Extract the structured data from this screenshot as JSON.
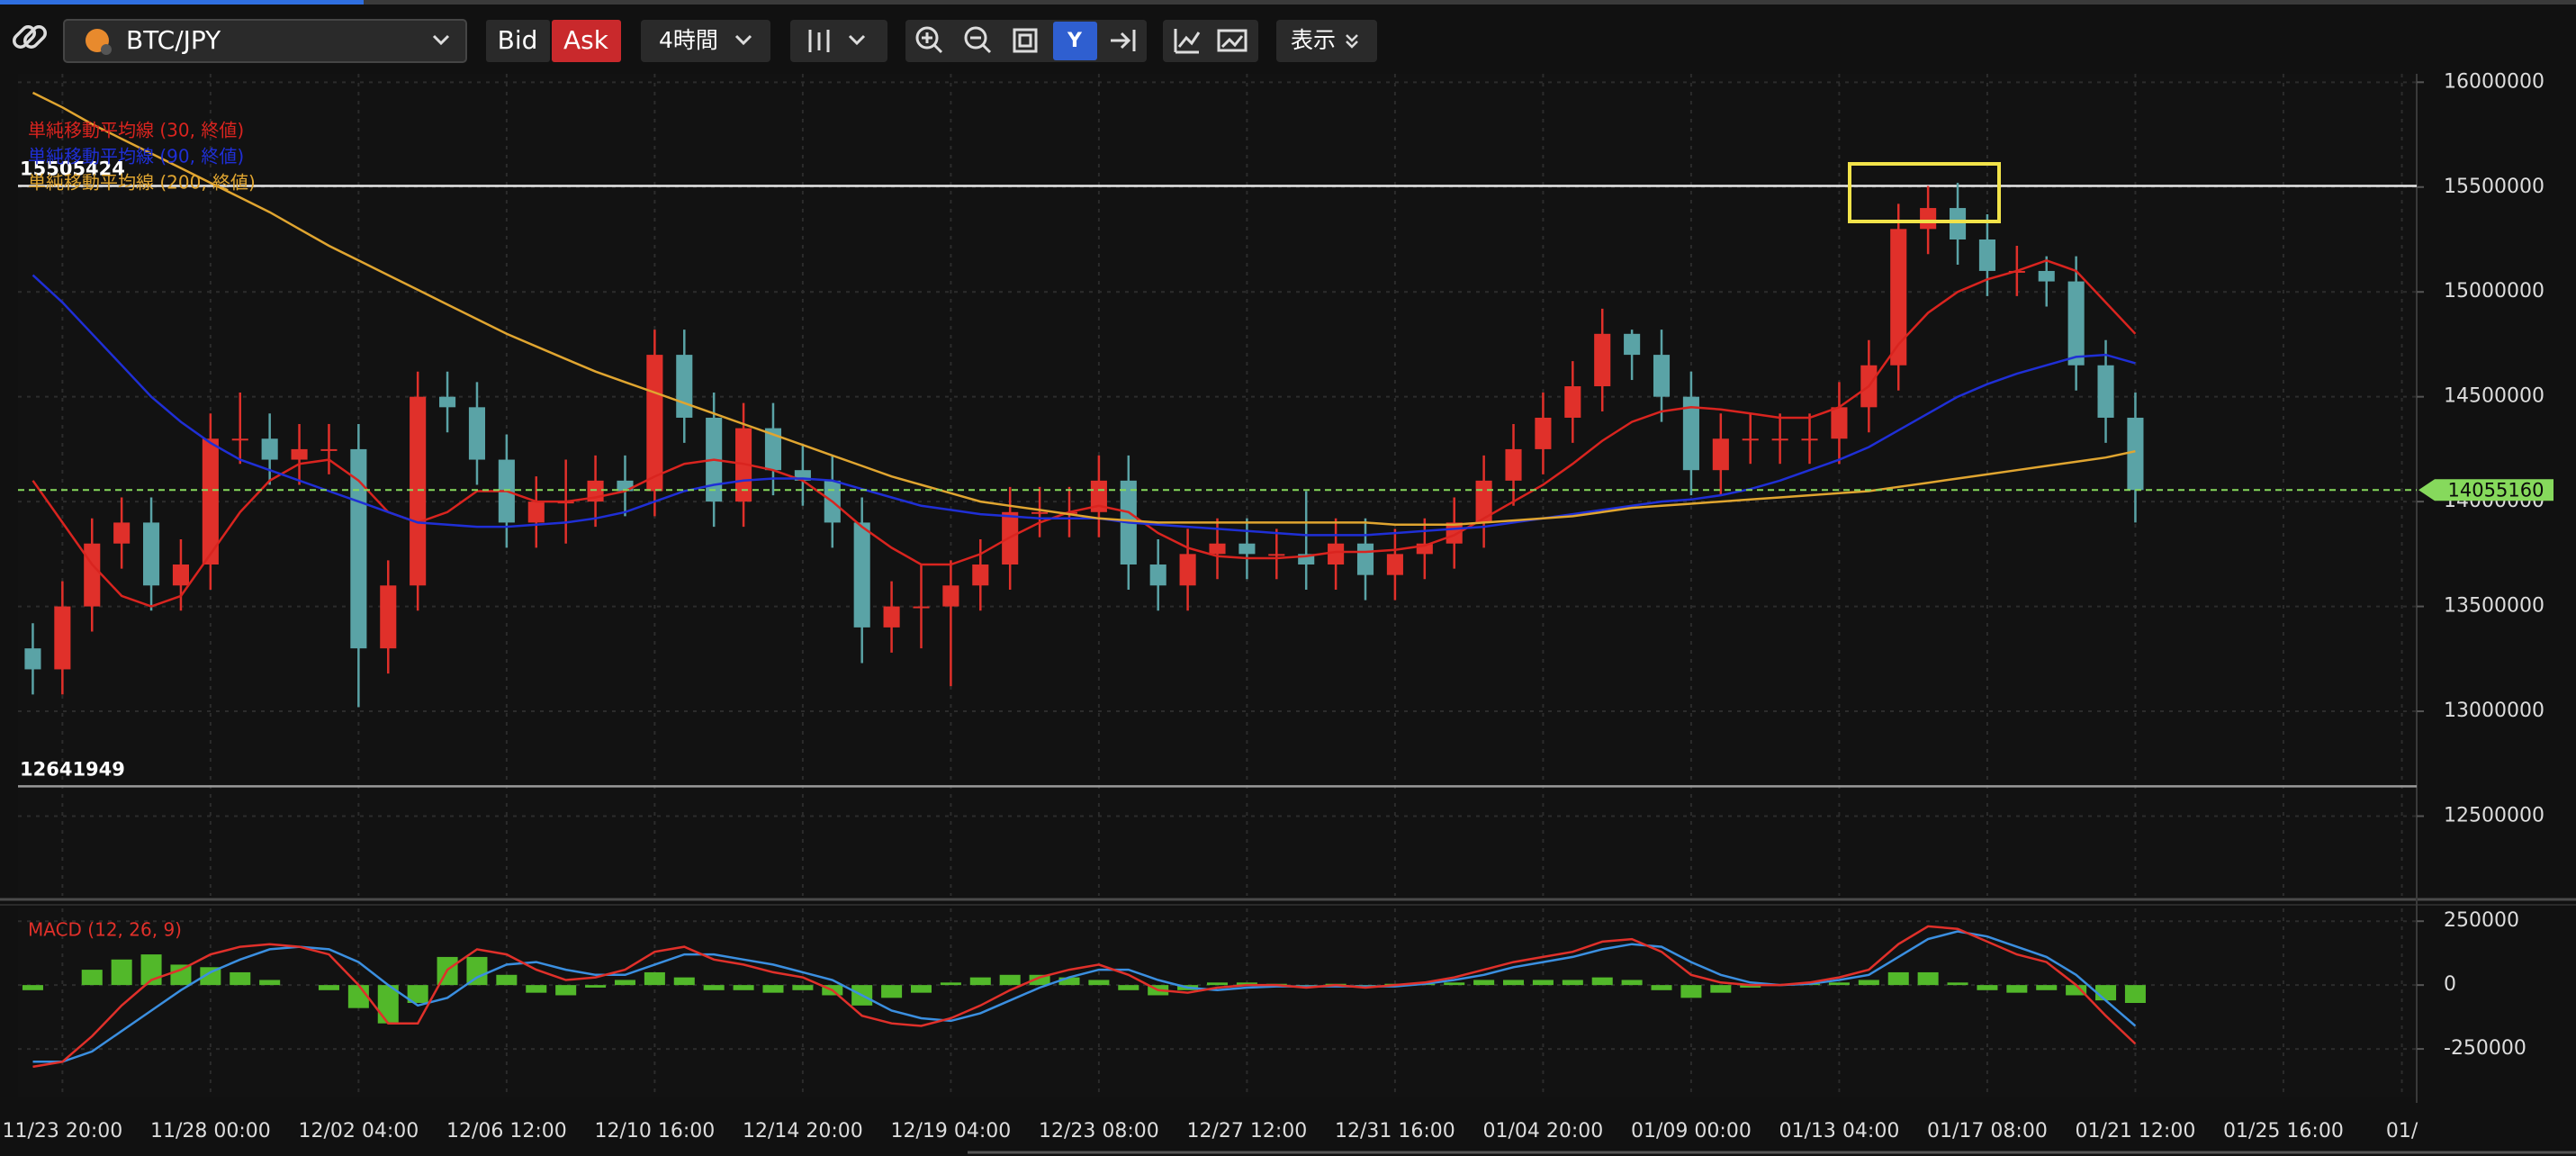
{
  "toolbar": {
    "symbol": "BTC/JPY",
    "bid": "Bid",
    "ask": "Ask",
    "interval": "4時間",
    "view": "表示"
  },
  "chart_data": [
    {
      "type": "candlestick",
      "categories": [
        null,
        "11/23 20:00",
        null,
        null,
        null,
        null,
        "11/28 00:00",
        null,
        null,
        null,
        null,
        "12/02 04:00",
        null,
        null,
        null,
        null,
        "12/06 12:00",
        null,
        null,
        null,
        null,
        "12/10 16:00",
        null,
        null,
        null,
        null,
        "12/14 20:00",
        null,
        null,
        null,
        null,
        "12/19 04:00",
        null,
        null,
        null,
        null,
        "12/23 08:00",
        null,
        null,
        null,
        null,
        "12/27 12:00",
        null,
        null,
        null,
        null,
        "12/31 16:00",
        null,
        null,
        null,
        null,
        "01/04 20:00",
        null,
        null,
        null,
        null,
        "01/09 00:00",
        null,
        null,
        null,
        null,
        "01/13 04:00",
        null,
        null,
        null,
        null,
        "01/17 08:00",
        null,
        null,
        null,
        null,
        "01/21 12:00",
        null,
        null,
        null,
        null,
        "01/25 16:00",
        null,
        null,
        null,
        "01/"
      ],
      "open": [
        13300000,
        13200000,
        13500000,
        13800000,
        13900000,
        13600000,
        13700000,
        14300000,
        14300000,
        14200000,
        14250000,
        14250000,
        13300000,
        13600000,
        14500000,
        14450000,
        14200000,
        13900000,
        14000000,
        14000000,
        14100000,
        14050000,
        14700000,
        14400000,
        14000000,
        14350000,
        14150000,
        14100000,
        13900000,
        13400000,
        13500000,
        13500000,
        13600000,
        13700000,
        13950000,
        13950000,
        13950000,
        14100000,
        13700000,
        13600000,
        13750000,
        13800000,
        13750000,
        13750000,
        13700000,
        13800000,
        13650000,
        13750000,
        13800000,
        13900000,
        14100000,
        14250000,
        14400000,
        14550000,
        14800000,
        14700000,
        14500000,
        14150000,
        14300000,
        14300000,
        14300000,
        14300000,
        14450000,
        14650000,
        15300000,
        15400000,
        15250000,
        15100000,
        15100000,
        15050000,
        14650000,
        14400000,
        null,
        null,
        null,
        null,
        null,
        null,
        null,
        null,
        null
      ],
      "high": [
        13420000,
        13620000,
        13920000,
        14020000,
        14020000,
        13820000,
        14420000,
        14520000,
        14420000,
        14370000,
        14370000,
        14370000,
        13720000,
        14620000,
        14620000,
        14570000,
        14320000,
        14120000,
        14200000,
        14220000,
        14220000,
        14820000,
        14820000,
        14520000,
        14470000,
        14470000,
        14270000,
        14220000,
        14020000,
        13620000,
        13700000,
        13720000,
        13820000,
        14070000,
        14070000,
        14070000,
        14220000,
        14220000,
        13820000,
        13870000,
        13920000,
        13920000,
        13870000,
        14050000,
        13920000,
        13920000,
        13870000,
        13920000,
        14020000,
        14220000,
        14370000,
        14520000,
        14670000,
        14920000,
        14820000,
        14820000,
        14620000,
        14420000,
        14420000,
        14420000,
        14420000,
        14570000,
        14770000,
        15420000,
        15505424,
        15520000,
        15370000,
        15220000,
        15170000,
        15170000,
        14770000,
        14520000,
        null,
        null,
        null,
        null,
        null,
        null,
        null,
        null,
        null
      ],
      "low": [
        13080000,
        13080000,
        13380000,
        13680000,
        13480000,
        13480000,
        13580000,
        14180000,
        14080000,
        14080000,
        14130000,
        13020000,
        13180000,
        13480000,
        14330000,
        14080000,
        13780000,
        13780000,
        13800000,
        13880000,
        13930000,
        13930000,
        14280000,
        13880000,
        13880000,
        14030000,
        13980000,
        13780000,
        13230000,
        13280000,
        13300000,
        13120000,
        13480000,
        13580000,
        13830000,
        13830000,
        13830000,
        13580000,
        13480000,
        13480000,
        13630000,
        13630000,
        13630000,
        13580000,
        13580000,
        13530000,
        13530000,
        13630000,
        13680000,
        13780000,
        13980000,
        14130000,
        14280000,
        14430000,
        14580000,
        14380000,
        14030000,
        14030000,
        14180000,
        14180000,
        14180000,
        14180000,
        14330000,
        14530000,
        15180000,
        15130000,
        14980000,
        14980000,
        14930000,
        14530000,
        14280000,
        13900000,
        null,
        null,
        null,
        null,
        null,
        null,
        null,
        null,
        null
      ],
      "close": [
        13200000,
        13500000,
        13800000,
        13900000,
        13600000,
        13700000,
        14300000,
        14300000,
        14200000,
        14250000,
        14250000,
        13300000,
        13600000,
        14500000,
        14450000,
        14200000,
        13900000,
        14000000,
        14000000,
        14100000,
        14050000,
        14700000,
        14400000,
        14000000,
        14350000,
        14150000,
        14100000,
        13900000,
        13400000,
        13500000,
        13500000,
        13600000,
        13700000,
        13950000,
        13950000,
        13950000,
        14100000,
        13700000,
        13600000,
        13750000,
        13800000,
        13750000,
        13750000,
        13700000,
        13800000,
        13650000,
        13750000,
        13800000,
        13900000,
        14100000,
        14250000,
        14400000,
        14550000,
        14800000,
        14700000,
        14500000,
        14150000,
        14300000,
        14300000,
        14300000,
        14300000,
        14450000,
        14650000,
        15300000,
        15400000,
        15250000,
        15100000,
        15100000,
        15050000,
        14650000,
        14400000,
        14055160,
        null,
        null,
        null,
        null,
        null,
        null,
        null,
        null,
        null
      ],
      "up_color": "#e0302a",
      "down_color": "#5aa3a6",
      "series": [
        {
          "name": "単純移動平均線 (30, 終値)",
          "color": "#d9241f",
          "values": [
            14100000,
            13900000,
            13700000,
            13550000,
            13500000,
            13550000,
            13750000,
            13950000,
            14100000,
            14180000,
            14200000,
            14100000,
            13950000,
            13900000,
            13950000,
            14050000,
            14050000,
            14000000,
            14000000,
            14020000,
            14050000,
            14120000,
            14180000,
            14200000,
            14180000,
            14150000,
            14100000,
            14000000,
            13880000,
            13780000,
            13700000,
            13700000,
            13750000,
            13830000,
            13900000,
            13950000,
            13980000,
            13950000,
            13850000,
            13780000,
            13740000,
            13730000,
            13730000,
            13740000,
            13760000,
            13760000,
            13770000,
            13790000,
            13840000,
            13920000,
            14000000,
            14080000,
            14180000,
            14290000,
            14380000,
            14430000,
            14450000,
            14440000,
            14420000,
            14400000,
            14400000,
            14450000,
            14550000,
            14750000,
            14900000,
            15000000,
            15060000,
            15100000,
            15150000,
            15100000,
            14950000,
            14800000,
            null,
            null,
            null,
            null,
            null,
            null,
            null,
            null,
            null
          ]
        },
        {
          "name": "単純移動平均線 (90, 終値)",
          "color": "#1f2fd6",
          "values": [
            15080000,
            14950000,
            14800000,
            14650000,
            14500000,
            14380000,
            14280000,
            14200000,
            14150000,
            14100000,
            14050000,
            14000000,
            13950000,
            13900000,
            13890000,
            13880000,
            13880000,
            13890000,
            13900000,
            13920000,
            13950000,
            14000000,
            14050000,
            14080000,
            14100000,
            14110000,
            14110000,
            14100000,
            14060000,
            14020000,
            13980000,
            13960000,
            13940000,
            13930000,
            13920000,
            13920000,
            13920000,
            13900000,
            13890000,
            13880000,
            13870000,
            13860000,
            13850000,
            13840000,
            13840000,
            13840000,
            13850000,
            13860000,
            13870000,
            13880000,
            13900000,
            13920000,
            13940000,
            13960000,
            13980000,
            14000000,
            14010000,
            14030000,
            14060000,
            14100000,
            14150000,
            14200000,
            14260000,
            14340000,
            14420000,
            14500000,
            14560000,
            14610000,
            14650000,
            14690000,
            14700000,
            14660000,
            null,
            null,
            null,
            null,
            null,
            null,
            null,
            null,
            null
          ]
        },
        {
          "name": "単純移動平均線 (200, 終値)",
          "color": "#e0a530",
          "values": [
            15950000,
            15880000,
            15800000,
            15730000,
            15660000,
            15590000,
            15520000,
            15450000,
            15380000,
            15300000,
            15220000,
            15150000,
            15080000,
            15010000,
            14940000,
            14870000,
            14800000,
            14740000,
            14680000,
            14620000,
            14570000,
            14520000,
            14470000,
            14420000,
            14370000,
            14320000,
            14270000,
            14220000,
            14170000,
            14120000,
            14080000,
            14040000,
            14000000,
            13980000,
            13960000,
            13940000,
            13920000,
            13910000,
            13900000,
            13900000,
            13900000,
            13900000,
            13900000,
            13900000,
            13900000,
            13900000,
            13890000,
            13890000,
            13890000,
            13900000,
            13910000,
            13920000,
            13930000,
            13950000,
            13970000,
            13980000,
            13990000,
            14000000,
            14010000,
            14020000,
            14030000,
            14040000,
            14050000,
            14070000,
            14090000,
            14110000,
            14130000,
            14150000,
            14170000,
            14190000,
            14210000,
            14240000,
            null,
            null,
            null,
            null,
            null,
            null,
            null,
            null,
            null
          ]
        }
      ],
      "hlines": [
        15505424,
        12641949
      ],
      "hline_colors": [
        "#e8e8e8",
        "#9a9a9a"
      ],
      "last_price": 14055160,
      "last_price_color": "#86d95c",
      "ylim": [
        12120000,
        16040000
      ],
      "yticks": [
        12500000,
        13000000,
        13500000,
        14000000,
        14500000,
        15000000,
        15500000,
        16000000
      ],
      "grid": true
    },
    {
      "type": "macd",
      "title": "MACD (12, 26, 9)",
      "macd": {
        "color": "#e0302a",
        "values": [
          -320000,
          -300000,
          -200000,
          -80000,
          20000,
          60000,
          120000,
          150000,
          160000,
          150000,
          120000,
          0,
          -150000,
          -150000,
          60000,
          140000,
          120000,
          60000,
          20000,
          30000,
          60000,
          130000,
          150000,
          100000,
          80000,
          50000,
          30000,
          -20000,
          -120000,
          -150000,
          -160000,
          -130000,
          -80000,
          -20000,
          30000,
          60000,
          80000,
          40000,
          -20000,
          -30000,
          -10000,
          0,
          0,
          -10000,
          0,
          -10000,
          0,
          10000,
          30000,
          60000,
          90000,
          110000,
          130000,
          170000,
          180000,
          130000,
          40000,
          10000,
          0,
          0,
          10000,
          30000,
          60000,
          160000,
          230000,
          220000,
          170000,
          120000,
          90000,
          0,
          -120000,
          -230000,
          null,
          null,
          null,
          null,
          null,
          null,
          null,
          null,
          null
        ]
      },
      "signal": {
        "color": "#3b8fe0",
        "values": [
          -300000,
          -300000,
          -260000,
          -180000,
          -100000,
          -20000,
          50000,
          100000,
          140000,
          150000,
          140000,
          90000,
          0,
          -80000,
          -50000,
          30000,
          80000,
          90000,
          60000,
          40000,
          40000,
          80000,
          120000,
          120000,
          100000,
          80000,
          50000,
          20000,
          -40000,
          -100000,
          -130000,
          -140000,
          -110000,
          -60000,
          -10000,
          30000,
          60000,
          60000,
          20000,
          -10000,
          -20000,
          -10000,
          -5000,
          -5000,
          -5000,
          -5000,
          -5000,
          5000,
          20000,
          40000,
          70000,
          90000,
          110000,
          140000,
          160000,
          150000,
          90000,
          40000,
          10000,
          0,
          5000,
          20000,
          40000,
          110000,
          180000,
          210000,
          190000,
          150000,
          110000,
          40000,
          -60000,
          -160000,
          null,
          null,
          null,
          null,
          null,
          null,
          null,
          null,
          null
        ]
      },
      "histogram": {
        "color": "#52b82a",
        "values": [
          -20000,
          0,
          60000,
          100000,
          120000,
          80000,
          70000,
          50000,
          20000,
          0,
          -20000,
          -90000,
          -150000,
          -70000,
          110000,
          110000,
          40000,
          -30000,
          -40000,
          -10000,
          20000,
          50000,
          30000,
          -20000,
          -20000,
          -30000,
          -20000,
          -40000,
          -80000,
          -50000,
          -30000,
          10000,
          30000,
          40000,
          40000,
          30000,
          20000,
          -20000,
          -40000,
          -20000,
          10000,
          10000,
          5000,
          -5000,
          5000,
          -5000,
          5000,
          5000,
          10000,
          20000,
          20000,
          20000,
          20000,
          30000,
          20000,
          -20000,
          -50000,
          -30000,
          -10000,
          0,
          5000,
          10000,
          20000,
          50000,
          50000,
          10000,
          -20000,
          -30000,
          -20000,
          -40000,
          -60000,
          -70000,
          null,
          null,
          null,
          null,
          null,
          null,
          null,
          null,
          null
        ]
      },
      "ylim": [
        -440000,
        300000
      ],
      "yticks": [
        -250000,
        0,
        250000
      ],
      "grid": true
    }
  ]
}
